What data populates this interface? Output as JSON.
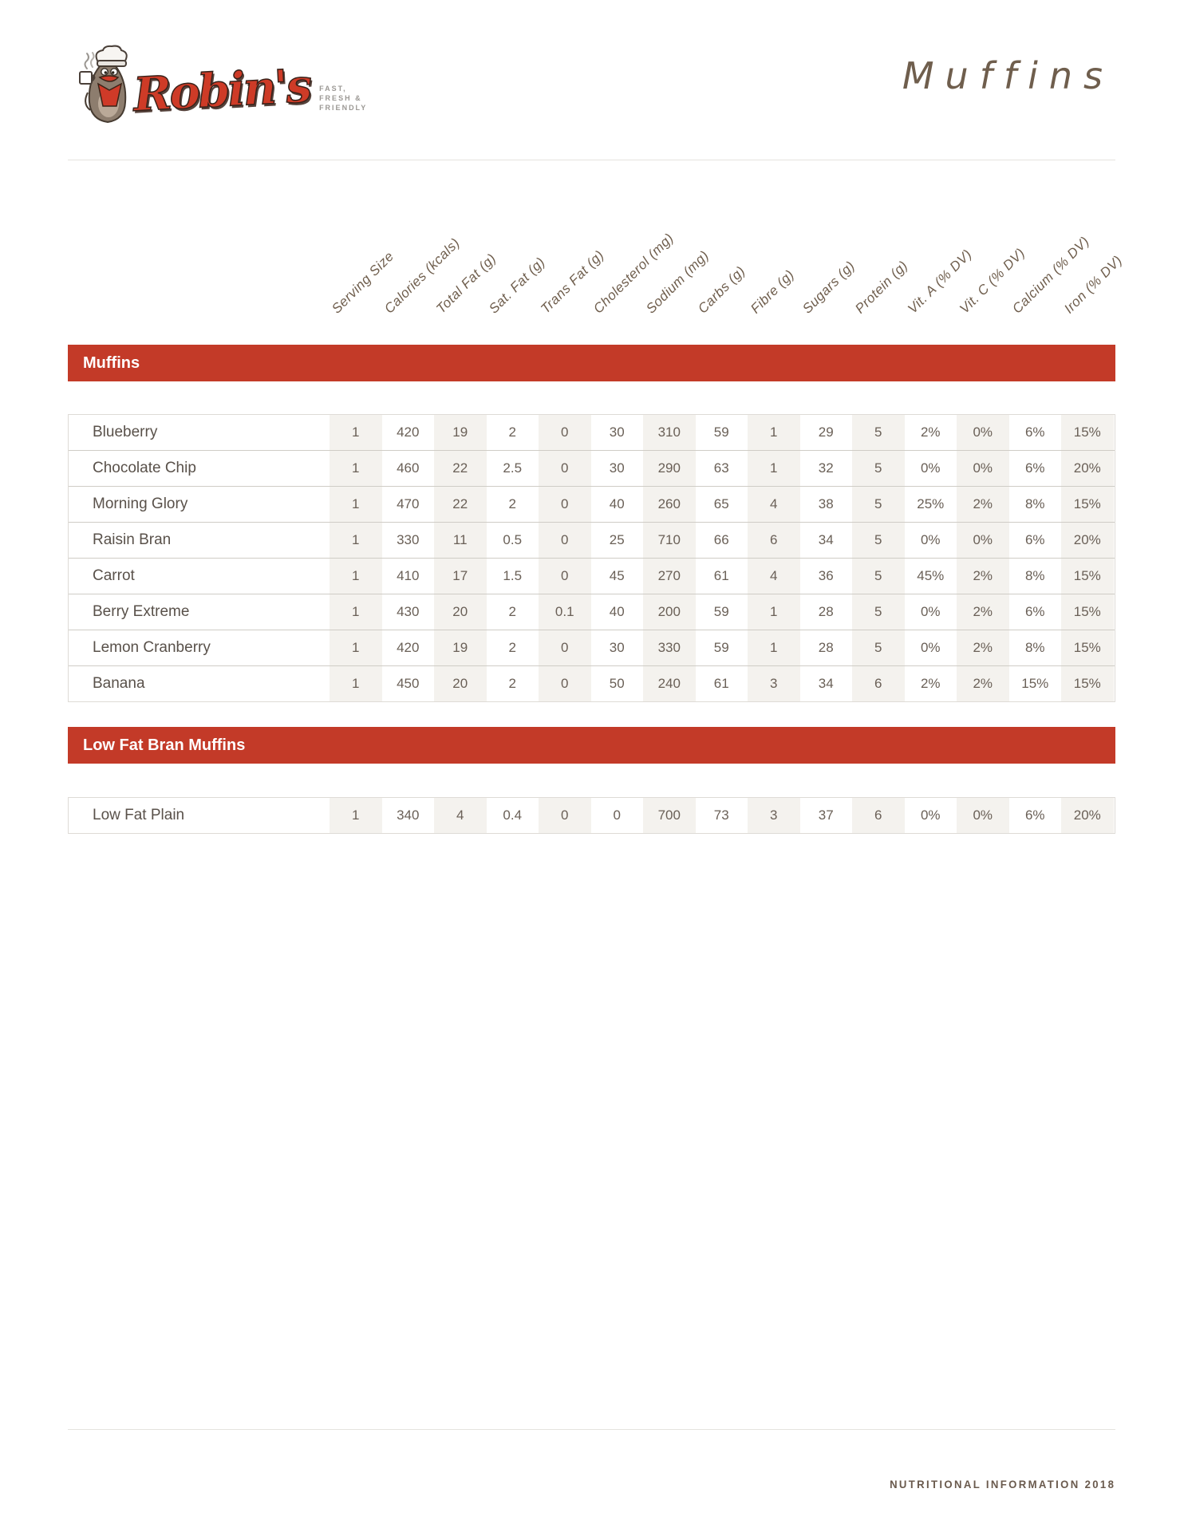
{
  "brand": {
    "name": "Robin's",
    "tagline_lines": [
      "FAST,",
      "FRESH &",
      "FRIENDLY"
    ]
  },
  "page_title": "Muffins",
  "columns": [
    "Serving Size",
    "Calories (kcals)",
    "Total Fat (g)",
    "Sat. Fat (g)",
    "Trans Fat (g)",
    "Cholesterol (mg)",
    "Sodium (mg)",
    "Carbs (g)",
    "Fibre (g)",
    "Sugars (g)",
    "Protein (g)",
    "Vit. A (% DV)",
    "Vit. C (% DV)",
    "Calcium (% DV)",
    "Iron (% DV)"
  ],
  "sections": [
    {
      "title": "Muffins",
      "rows": [
        {
          "name": "Blueberry",
          "values": [
            "1",
            "420",
            "19",
            "2",
            "0",
            "30",
            "310",
            "59",
            "1",
            "29",
            "5",
            "2%",
            "0%",
            "6%",
            "15%"
          ]
        },
        {
          "name": "Chocolate Chip",
          "values": [
            "1",
            "460",
            "22",
            "2.5",
            "0",
            "30",
            "290",
            "63",
            "1",
            "32",
            "5",
            "0%",
            "0%",
            "6%",
            "20%"
          ]
        },
        {
          "name": "Morning Glory",
          "values": [
            "1",
            "470",
            "22",
            "2",
            "0",
            "40",
            "260",
            "65",
            "4",
            "38",
            "5",
            "25%",
            "2%",
            "8%",
            "15%"
          ]
        },
        {
          "name": "Raisin Bran",
          "values": [
            "1",
            "330",
            "11",
            "0.5",
            "0",
            "25",
            "710",
            "66",
            "6",
            "34",
            "5",
            "0%",
            "0%",
            "6%",
            "20%"
          ]
        },
        {
          "name": "Carrot",
          "values": [
            "1",
            "410",
            "17",
            "1.5",
            "0",
            "45",
            "270",
            "61",
            "4",
            "36",
            "5",
            "45%",
            "2%",
            "8%",
            "15%"
          ]
        },
        {
          "name": "Berry Extreme",
          "values": [
            "1",
            "430",
            "20",
            "2",
            "0.1",
            "40",
            "200",
            "59",
            "1",
            "28",
            "5",
            "0%",
            "2%",
            "6%",
            "15%"
          ]
        },
        {
          "name": "Lemon Cranberry",
          "values": [
            "1",
            "420",
            "19",
            "2",
            "0",
            "30",
            "330",
            "59",
            "1",
            "28",
            "5",
            "0%",
            "2%",
            "8%",
            "15%"
          ]
        },
        {
          "name": "Banana",
          "values": [
            "1",
            "450",
            "20",
            "2",
            "0",
            "50",
            "240",
            "61",
            "3",
            "34",
            "6",
            "2%",
            "2%",
            "15%",
            "15%"
          ]
        }
      ]
    },
    {
      "title": "Low Fat Bran Muffins",
      "rows": [
        {
          "name": "Low Fat Plain",
          "values": [
            "1",
            "340",
            "4",
            "0.4",
            "0",
            "0",
            "700",
            "73",
            "3",
            "37",
            "6",
            "0%",
            "0%",
            "6%",
            "20%"
          ]
        }
      ]
    }
  ],
  "footer": {
    "text": "NUTRITIONAL INFORMATION 2018"
  },
  "colors": {
    "accent_red": "#c33a28",
    "handwritten_brown": "#6f5e4d",
    "value_text": "#6a6057",
    "shaded_column": "#f4f2ee"
  }
}
